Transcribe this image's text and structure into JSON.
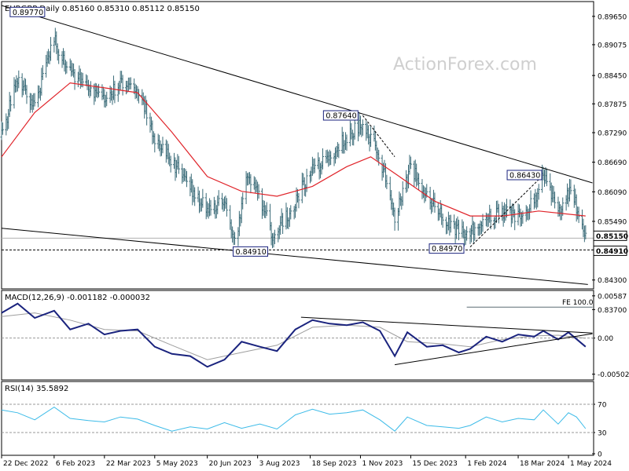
{
  "chart_data": [
    {
      "panel": "price",
      "type": "ohlc",
      "title": "EURGBP,Daily",
      "ohlc_readout": [
        "0.85160",
        "0.85310",
        "0.85112",
        "0.85150"
      ],
      "watermark": "ActionForex.com",
      "ylim": [
        0.8412,
        0.8995
      ],
      "y_ticks": [
        "0.89650",
        "0.89075",
        "0.88450",
        "0.87875",
        "0.87290",
        "0.86690",
        "0.86090",
        "0.85490",
        "0.84910",
        "0.84300",
        "0.83700"
      ],
      "current_price": "0.85150",
      "support_level": "0.84910",
      "fe_label": "FE 100.0",
      "price_labels": [
        {
          "text": "0.89770",
          "date": "2023-02-06",
          "value": 0.8977
        },
        {
          "text": "0.87640",
          "date": "2023-11-03",
          "value": 0.8764
        },
        {
          "text": "0.86430",
          "date": "2024-04-09",
          "value": 0.8643
        },
        {
          "text": "0.84910",
          "date": "2023-08-16",
          "value": 0.8491
        },
        {
          "text": "0.84970",
          "date": "2024-02-05",
          "value": 0.8497
        }
      ],
      "keypoints_close": [
        [
          "2022-12-22",
          0.872
        ],
        [
          "2023-01-05",
          0.884
        ],
        [
          "2023-01-20",
          0.878
        ],
        [
          "2023-02-06",
          0.892
        ],
        [
          "2023-02-20",
          0.885
        ],
        [
          "2023-03-08",
          0.882
        ],
        [
          "2023-03-22",
          0.879
        ],
        [
          "2023-04-05",
          0.883
        ],
        [
          "2023-04-20",
          0.882
        ],
        [
          "2023-05-05",
          0.872
        ],
        [
          "2023-05-20",
          0.867
        ],
        [
          "2023-06-05",
          0.862
        ],
        [
          "2023-06-20",
          0.857
        ],
        [
          "2023-07-05",
          0.859
        ],
        [
          "2023-07-15",
          0.851
        ],
        [
          "2023-07-25",
          0.865
        ],
        [
          "2023-08-05",
          0.86
        ],
        [
          "2023-08-16",
          0.852
        ],
        [
          "2023-09-01",
          0.857
        ],
        [
          "2023-09-18",
          0.865
        ],
        [
          "2023-10-05",
          0.868
        ],
        [
          "2023-10-20",
          0.872
        ],
        [
          "2023-11-03",
          0.875
        ],
        [
          "2023-11-18",
          0.868
        ],
        [
          "2023-12-01",
          0.856
        ],
        [
          "2023-12-15",
          0.866
        ],
        [
          "2023-12-29",
          0.86
        ],
        [
          "2024-01-12",
          0.856
        ],
        [
          "2024-01-26",
          0.853
        ],
        [
          "2024-02-05",
          0.853
        ],
        [
          "2024-02-19",
          0.856
        ],
        [
          "2024-03-04",
          0.857
        ],
        [
          "2024-03-18",
          0.856
        ],
        [
          "2024-04-01",
          0.859
        ],
        [
          "2024-04-09",
          0.864
        ],
        [
          "2024-04-22",
          0.857
        ],
        [
          "2024-05-01",
          0.861
        ],
        [
          "2024-05-08",
          0.858
        ],
        [
          "2024-05-16",
          0.8515
        ]
      ],
      "moving_average": [
        [
          "2022-12-22",
          0.868
        ],
        [
          "2023-01-20",
          0.877
        ],
        [
          "2023-02-20",
          0.883
        ],
        [
          "2023-03-22",
          0.882
        ],
        [
          "2023-04-20",
          0.881
        ],
        [
          "2023-05-20",
          0.873
        ],
        [
          "2023-06-20",
          0.864
        ],
        [
          "2023-07-20",
          0.861
        ],
        [
          "2023-08-20",
          0.86
        ],
        [
          "2023-09-20",
          0.862
        ],
        [
          "2023-10-20",
          0.866
        ],
        [
          "2023-11-10",
          0.868
        ],
        [
          "2023-12-05",
          0.864
        ],
        [
          "2024-01-05",
          0.859
        ],
        [
          "2024-02-05",
          0.856
        ],
        [
          "2024-03-05",
          0.856
        ],
        [
          "2024-04-05",
          0.857
        ],
        [
          "2024-05-16",
          0.856
        ]
      ],
      "trendlines": [
        {
          "name": "upper",
          "from": [
            "2022-12-22",
            0.8987
          ],
          "to": [
            "2024-05-22",
            0.8627
          ]
        },
        {
          "name": "lower",
          "from": [
            "2022-12-22",
            0.8535
          ],
          "to": [
            "2024-05-18",
            0.8421
          ]
        },
        {
          "name": "fe",
          "from": [
            "2024-02-02",
            0.8375
          ],
          "to": [
            "2024-05-22",
            0.8375
          ]
        },
        {
          "name": "projection",
          "from": [
            "2024-02-05",
            0.8497
          ],
          "to": [
            "2024-04-09",
            0.8643
          ]
        },
        {
          "name": "projection",
          "from": [
            "2023-11-03",
            0.8764
          ],
          "to": [
            "2023-12-01",
            0.868
          ]
        }
      ]
    },
    {
      "panel": "macd",
      "type": "line",
      "title": "MACD(12,26,9) -0.001182 -0.000032",
      "ylim": [
        -0.0056,
        0.0064
      ],
      "y_ticks": [
        "0.00587",
        "0.00",
        "-0.005021"
      ],
      "series": [
        {
          "values": [
            [
              "2022-12-22",
              0.0035
            ],
            [
              "2023-01-05",
              0.0048
            ],
            [
              "2023-01-20",
              0.0028
            ],
            [
              "2023-02-06",
              0.0038
            ],
            [
              "2023-02-20",
              0.0012
            ],
            [
              "2023-03-08",
              0.002
            ],
            [
              "2023-03-22",
              0.0005
            ],
            [
              "2023-04-05",
              0.001
            ],
            [
              "2023-04-20",
              0.0012
            ],
            [
              "2023-05-05",
              -0.0012
            ],
            [
              "2023-05-20",
              -0.0022
            ],
            [
              "2023-06-05",
              -0.0025
            ],
            [
              "2023-06-20",
              -0.004
            ],
            [
              "2023-07-05",
              -0.003
            ],
            [
              "2023-07-20",
              -0.0005
            ],
            [
              "2023-08-05",
              -0.0012
            ],
            [
              "2023-08-20",
              -0.0018
            ],
            [
              "2023-09-05",
              0.0012
            ],
            [
              "2023-09-20",
              0.0025
            ],
            [
              "2023-10-05",
              0.002
            ],
            [
              "2023-10-20",
              0.0018
            ],
            [
              "2023-11-03",
              0.0022
            ],
            [
              "2023-11-18",
              0.001
            ],
            [
              "2023-12-01",
              -0.0025
            ],
            [
              "2023-12-12",
              0.0008
            ],
            [
              "2023-12-29",
              -0.0012
            ],
            [
              "2024-01-12",
              -0.001
            ],
            [
              "2024-01-26",
              -0.002
            ],
            [
              "2024-02-05",
              -0.0015
            ],
            [
              "2024-02-19",
              0.0002
            ],
            [
              "2024-03-04",
              -0.0005
            ],
            [
              "2024-03-18",
              0.0005
            ],
            [
              "2024-04-01",
              0.0002
            ],
            [
              "2024-04-09",
              0.001
            ],
            [
              "2024-04-22",
              -0.0002
            ],
            [
              "2024-05-01",
              0.0008
            ],
            [
              "2024-05-16",
              -0.0012
            ]
          ]
        },
        {
          "values": [
            [
              "2022-12-22",
              0.003
            ],
            [
              "2023-01-20",
              0.0035
            ],
            [
              "2023-02-20",
              0.0025
            ],
            [
              "2023-03-22",
              0.0012
            ],
            [
              "2023-04-20",
              0.001
            ],
            [
              "2023-05-20",
              -0.001
            ],
            [
              "2023-06-20",
              -0.003
            ],
            [
              "2023-07-20",
              -0.002
            ],
            [
              "2023-08-20",
              -0.001
            ],
            [
              "2023-09-20",
              0.0015
            ],
            [
              "2023-10-20",
              0.0018
            ],
            [
              "2023-11-18",
              0.0015
            ],
            [
              "2023-12-12",
              -0.0005
            ],
            [
              "2024-01-12",
              -0.0008
            ],
            [
              "2024-02-05",
              -0.0012
            ],
            [
              "2024-03-04",
              -0.0002
            ],
            [
              "2024-04-01",
              0.0003
            ],
            [
              "2024-04-22",
              0.0004
            ],
            [
              "2024-05-16",
              -3e-05
            ]
          ]
        }
      ],
      "trendlines": [
        {
          "from": [
            "2023-09-10",
            0.0029
          ],
          "to": [
            "2024-05-22",
            0.0007
          ]
        },
        {
          "from": [
            "2023-12-01",
            -0.0037
          ],
          "to": [
            "2024-05-22",
            0.0006
          ]
        }
      ]
    },
    {
      "panel": "rsi",
      "type": "line",
      "title": "RSI(14) 35.5892",
      "ylim": [
        0,
        100
      ],
      "y_ticks": [
        "70",
        "30",
        "0"
      ],
      "series": [
        {
          "values": [
            [
              "2022-12-22",
              62
            ],
            [
              "2023-01-05",
              58
            ],
            [
              "2023-01-20",
              48
            ],
            [
              "2023-02-06",
              66
            ],
            [
              "2023-02-20",
              50
            ],
            [
              "2023-03-08",
              47
            ],
            [
              "2023-03-22",
              45
            ],
            [
              "2023-04-05",
              52
            ],
            [
              "2023-04-20",
              49
            ],
            [
              "2023-05-05",
              40
            ],
            [
              "2023-05-20",
              32
            ],
            [
              "2023-06-05",
              38
            ],
            [
              "2023-06-20",
              35
            ],
            [
              "2023-07-05",
              44
            ],
            [
              "2023-07-20",
              36
            ],
            [
              "2023-08-05",
              42
            ],
            [
              "2023-08-20",
              35
            ],
            [
              "2023-09-05",
              55
            ],
            [
              "2023-09-20",
              63
            ],
            [
              "2023-10-05",
              56
            ],
            [
              "2023-10-20",
              58
            ],
            [
              "2023-11-03",
              62
            ],
            [
              "2023-11-18",
              48
            ],
            [
              "2023-12-01",
              32
            ],
            [
              "2023-12-12",
              52
            ],
            [
              "2023-12-29",
              40
            ],
            [
              "2024-01-12",
              38
            ],
            [
              "2024-01-26",
              36
            ],
            [
              "2024-02-05",
              40
            ],
            [
              "2024-02-19",
              52
            ],
            [
              "2024-03-04",
              45
            ],
            [
              "2024-03-18",
              50
            ],
            [
              "2024-04-01",
              48
            ],
            [
              "2024-04-09",
              62
            ],
            [
              "2024-04-22",
              42
            ],
            [
              "2024-05-01",
              58
            ],
            [
              "2024-05-08",
              52
            ],
            [
              "2024-05-16",
              35.5892
            ]
          ]
        }
      ]
    }
  ],
  "x_axis": {
    "ticks": [
      {
        "label": "22 Dec 2022",
        "date": "2022-12-22"
      },
      {
        "label": "6 Feb 2023",
        "date": "2023-02-06"
      },
      {
        "label": "22 Mar 2023",
        "date": "2023-03-22"
      },
      {
        "label": "5 May 2023",
        "date": "2023-05-05"
      },
      {
        "label": "20 Jun 2023",
        "date": "2023-06-20"
      },
      {
        "label": "3 Aug 2023",
        "date": "2023-08-03"
      },
      {
        "label": "18 Sep 2023",
        "date": "2023-09-18"
      },
      {
        "label": "1 Nov 2023",
        "date": "2023-11-01"
      },
      {
        "label": "15 Dec 2023",
        "date": "2023-12-15"
      },
      {
        "label": "1 Feb 2024",
        "date": "2024-02-01"
      },
      {
        "label": "18 Mar 2024",
        "date": "2024-03-18"
      },
      {
        "label": "1 May 2024",
        "date": "2024-05-01"
      }
    ]
  },
  "colors": {
    "bars": "#3a6b78",
    "moving_average": "#e0242a",
    "macd_line": "#1a237e",
    "signal_line": "#9e9e9e",
    "rsi_line": "#3cbbe8",
    "trendline": "#000000",
    "label_border": "#1a237e",
    "watermark": "#cfcfcf"
  }
}
